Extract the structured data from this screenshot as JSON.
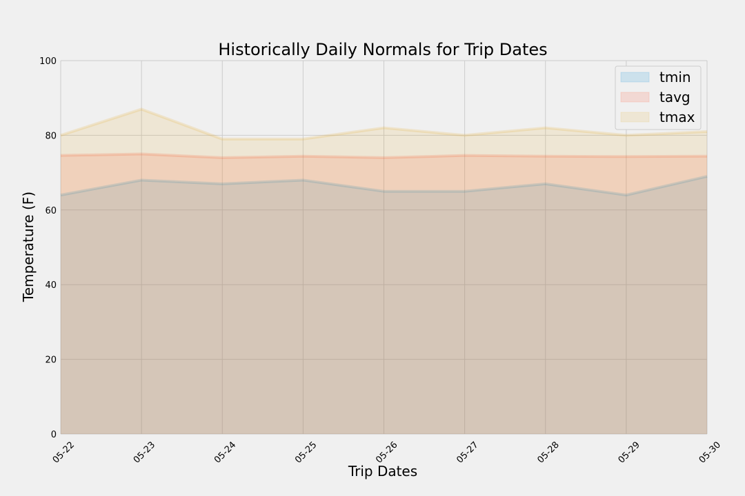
{
  "chart_data": {
    "type": "area",
    "title": "Historically Daily Normals for Trip Dates",
    "xlabel": "Trip Dates",
    "ylabel": "Temperature (F)",
    "categories": [
      "05-22",
      "05-23",
      "05-24",
      "05-25",
      "05-26",
      "05-27",
      "05-28",
      "05-29",
      "05-30"
    ],
    "series": [
      {
        "name": "tmin",
        "color": "#008fd5",
        "values": [
          64,
          68,
          67,
          68,
          65,
          65,
          67,
          64,
          69
        ]
      },
      {
        "name": "tavg",
        "color": "#fc4f30",
        "values": [
          74.6,
          75.0,
          74.0,
          74.4,
          74.0,
          74.6,
          74.4,
          74.3,
          74.4
        ]
      },
      {
        "name": "tmax",
        "color": "#e5ae38",
        "values": [
          80,
          87,
          79,
          79,
          82,
          80,
          82,
          80,
          81
        ]
      }
    ],
    "stacked": false,
    "ylim": [
      0,
      100
    ],
    "yticks": [
      0,
      20,
      40,
      60,
      80,
      100
    ],
    "grid": true,
    "legend_position": "top-right",
    "background": "#f0f0f0",
    "grid_color": "#cbcbcb"
  }
}
